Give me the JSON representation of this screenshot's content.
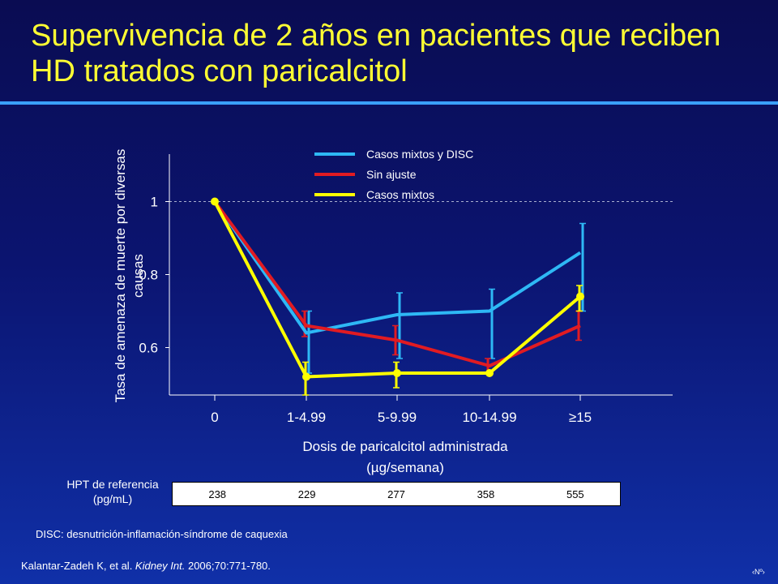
{
  "slide": {
    "title": "Supervivencia de 2 años en pacientes que reciben HD tratados con paricalcitol",
    "hpt_label": "HPT de referencia (pg/mL)",
    "hpt_values": [
      "238",
      "229",
      "277",
      "358",
      "555"
    ],
    "footnote": "DISC: desnutrición-inflamación-síndrome de caquexia",
    "reference_plain": "Kalantar-Zadeh K, et al. ",
    "reference_journal": "Kidney Int.",
    "reference_rest": " 2006;70:771-780.",
    "page_number": "‹Nº›"
  },
  "chart_data": {
    "type": "line",
    "xlabel_line1": "Dosis de paricalcitol administrada",
    "xlabel_line2": "(µg/semana)",
    "ylabel": "Tasa de amenaza de muerte por diversas causas",
    "categories": [
      "0",
      "1-4.99",
      "5-9.99",
      "10-14.99",
      "≥15"
    ],
    "yticks": [
      "1",
      "0.8",
      "0.6"
    ],
    "ylim": [
      0.47,
      1.13
    ],
    "reference_line": 1,
    "legend_position": "top-center",
    "series": [
      {
        "name": "Casos mixtos y DISC",
        "color": "#2eb8f5",
        "values": [
          1,
          0.64,
          0.69,
          0.7,
          0.86
        ],
        "ci_low": [
          1,
          0.53,
          0.57,
          0.57,
          0.7
        ],
        "ci_high": [
          1,
          0.7,
          0.75,
          0.76,
          0.94
        ]
      },
      {
        "name": "Sin ajuste",
        "color": "#e11b22",
        "values": [
          1,
          0.66,
          0.62,
          0.55,
          0.66
        ],
        "ci_low": [
          1,
          0.63,
          0.58,
          0.53,
          0.62
        ],
        "ci_high": [
          1,
          0.7,
          0.66,
          0.57,
          0.7
        ]
      },
      {
        "name": "Casos mixtos",
        "color": "#ffff00",
        "values": [
          1,
          0.52,
          0.53,
          0.53,
          0.74
        ],
        "ci_low": [
          1,
          0.47,
          0.49,
          0.53,
          0.7
        ],
        "ci_high": [
          1,
          0.56,
          0.56,
          0.53,
          0.77
        ]
      }
    ]
  }
}
